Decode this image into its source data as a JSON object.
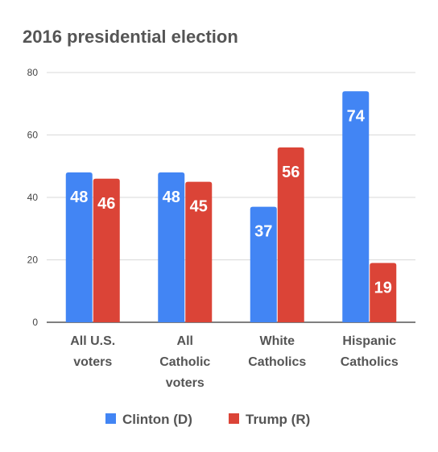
{
  "chart_data": {
    "type": "bar",
    "title": "2016 presidential election",
    "xlabel": "",
    "ylabel": "",
    "ylim": [
      0,
      80
    ],
    "yticks": [
      0,
      20,
      40,
      60,
      80
    ],
    "grid": true,
    "legend_position": "bottom",
    "categories": [
      [
        "All U.S.",
        "voters"
      ],
      [
        "All",
        "Catholic",
        "voters"
      ],
      [
        "White",
        "Catholics"
      ],
      [
        "Hispanic",
        "Catholics"
      ]
    ],
    "series": [
      {
        "name": "Clinton (D)",
        "color": "#4285f4",
        "values": [
          48,
          48,
          37,
          74
        ]
      },
      {
        "name": "Trump (R)",
        "color": "#db4437",
        "values": [
          46,
          45,
          56,
          19
        ]
      }
    ]
  }
}
